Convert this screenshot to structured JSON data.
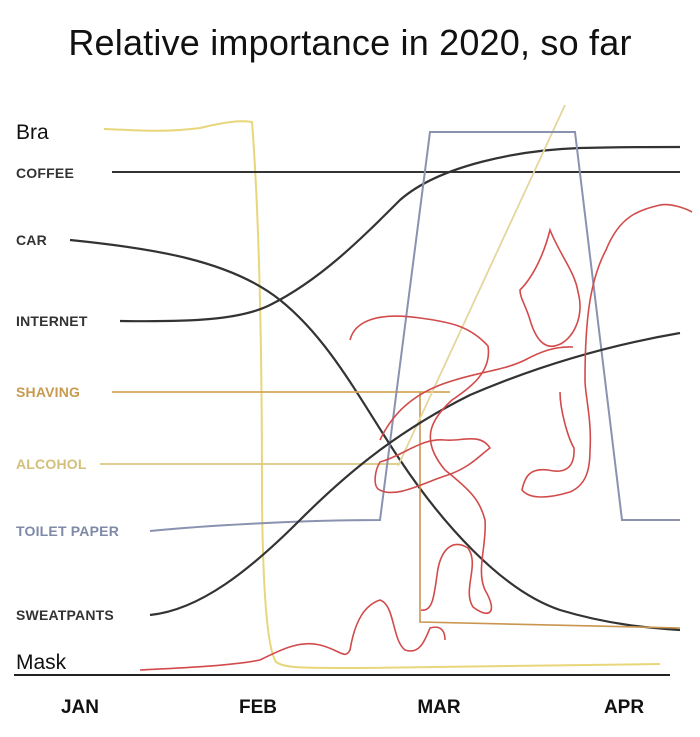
{
  "title": "Relative importance in 2020, so far",
  "chart_data": {
    "type": "line",
    "title": "Relative importance in 2020, so far",
    "xlabel": "",
    "ylabel": "",
    "x_ticks": [
      "JAN",
      "FEB",
      "MAR",
      "APR"
    ],
    "grid": false,
    "legend": "series labels placed at the left end of each line",
    "series": [
      {
        "name": "Bra",
        "color": "#e8d67a",
        "x": [
          0.25,
          0.55,
          1.0,
          1.03,
          1.05,
          1.1,
          1.25,
          2.0,
          3.0
        ],
        "y": [
          0.96,
          0.95,
          0.97,
          0.6,
          0.1,
          0.02,
          0.01,
          0.01,
          0.02
        ]
      },
      {
        "name": "COFFEE",
        "color": "#333333",
        "x": [
          0.3,
          3.2
        ],
        "y": [
          0.885,
          0.885
        ]
      },
      {
        "name": "CAR",
        "color": "#333333",
        "x": [
          0.15,
          0.6,
          1.0,
          1.5,
          2.0,
          2.5,
          3.0
        ],
        "y": [
          0.76,
          0.74,
          0.65,
          0.42,
          0.22,
          0.12,
          0.08
        ]
      },
      {
        "name": "INTERNET",
        "color": "#333333",
        "x": [
          0.35,
          0.7,
          1.0,
          1.5,
          2.0,
          2.5,
          3.0
        ],
        "y": [
          0.6,
          0.6,
          0.64,
          0.76,
          0.85,
          0.88,
          0.89
        ]
      },
      {
        "name": "SHAVING",
        "color": "#d6a85a",
        "x": [
          0.25,
          2.0,
          3.0
        ],
        "y": [
          0.5,
          0.5,
          0.5
        ]
      },
      {
        "name": "ALCOHOL",
        "color": "#d9c880",
        "x": [
          0.15,
          1.65,
          2.35,
          3.0
        ],
        "y": [
          0.4,
          0.4,
          0.4,
          0.4
        ]
      },
      {
        "name": "TOILET PAPER",
        "color": "#8a92b0",
        "x": [
          0.45,
          1.55,
          1.68,
          2.5,
          2.6,
          3.2
        ],
        "y": [
          0.285,
          0.285,
          0.93,
          0.93,
          0.285,
          0.285
        ]
      },
      {
        "name": "SWEATPANTS",
        "color": "#333333",
        "x": [
          0.45,
          1.0,
          1.5,
          2.0,
          2.5,
          3.0
        ],
        "y": [
          0.11,
          0.22,
          0.38,
          0.5,
          0.56,
          0.58
        ]
      },
      {
        "name": "Mask",
        "color": "#d24b4b",
        "x": [
          0.0,
          0.6,
          1.0,
          1.5,
          2.0,
          3.0
        ],
        "y": [
          0.03,
          0.04,
          0.05,
          0.1,
          0.14,
          0.62
        ]
      }
    ]
  }
}
